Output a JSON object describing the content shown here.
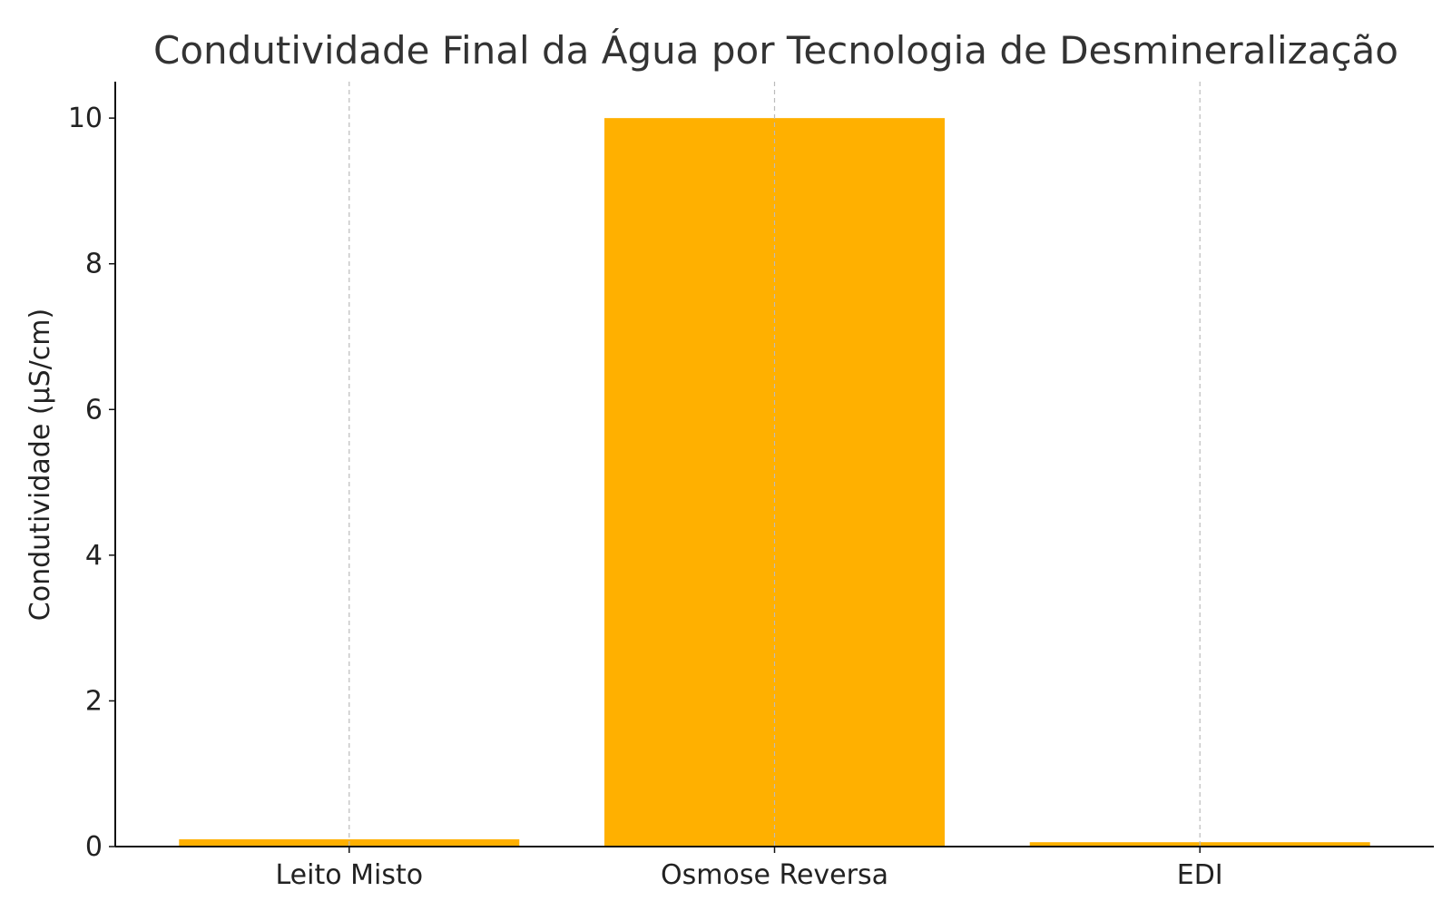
{
  "chart_data": {
    "type": "bar",
    "title": "Condutividade Final da Água por Tecnologia de Desmineralização",
    "xlabel": "",
    "ylabel": "Condutividade (µS/cm)",
    "categories": [
      "Leito Misto",
      "Osmose Reversa",
      "EDI"
    ],
    "values": [
      0.1,
      10,
      0.06
    ],
    "ylim": [
      0,
      10.5
    ],
    "yticks": [
      0,
      2,
      4,
      6,
      8,
      10
    ],
    "grid": "x-dashed",
    "bar_color": "#FFB000",
    "legend": "none"
  }
}
